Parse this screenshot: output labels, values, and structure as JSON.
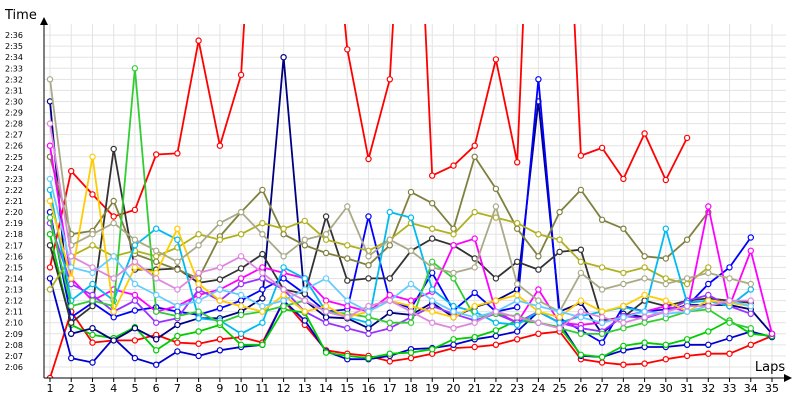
{
  "chart_data": {
    "type": "line",
    "title": "",
    "xlabel": "Laps",
    "ylabel": "Time",
    "x": [
      1,
      2,
      3,
      4,
      5,
      6,
      7,
      8,
      9,
      10,
      11,
      12,
      13,
      14,
      15,
      16,
      17,
      18,
      19,
      20,
      21,
      22,
      23,
      24,
      25,
      26,
      27,
      28,
      29,
      30,
      31,
      32,
      33,
      34,
      35
    ],
    "xlim": [
      1,
      35
    ],
    "ylim": [
      "2:05",
      "2:37"
    ],
    "y_ticks": [
      "2:06",
      "2:07",
      "2:08",
      "2:09",
      "2:10",
      "2:11",
      "2:12",
      "2:13",
      "2:14",
      "2:15",
      "2:16",
      "2:17",
      "2:18",
      "2:19",
      "2:20",
      "2:21",
      "2:22",
      "2:23",
      "2:24",
      "2:25",
      "2:26",
      "2:27",
      "2:28",
      "2:29",
      "2:30",
      "2:31",
      "2:32",
      "2:33",
      "2:34",
      "2:35",
      "2:36"
    ],
    "grid": true,
    "legend": "none",
    "series": [
      {
        "color": "#ff0000",
        "values": [
          135,
          143.7,
          141.6,
          139.6,
          140.2,
          145.2,
          145.3,
          155.5,
          146,
          152.4,
          185,
          160,
          180,
          175,
          154.7,
          144.8,
          152,
          185,
          143.3,
          144.2,
          146,
          153.8,
          144.5,
          190,
          185,
          145.1,
          145.8,
          143,
          147.1,
          142.9,
          146.7,
          null,
          null,
          null,
          null
        ]
      },
      {
        "color": "#ff0000",
        "values": [
          125,
          131,
          128.2,
          128.4,
          128.4,
          128.9,
          128.2,
          128.1,
          128.5,
          128.7,
          128.2,
          132,
          129.8,
          127.5,
          127.2,
          127.0,
          126.5,
          126.8,
          127.2,
          127.7,
          127.8,
          128.0,
          128.5,
          129.0,
          129.2,
          126.7,
          126.4,
          126.2,
          126.3,
          126.7,
          127.0,
          127.2,
          127.2,
          128,
          128.8
        ]
      },
      {
        "color": "#0000cc",
        "values": [
          134,
          126.8,
          126.4,
          128.6,
          126.8,
          126.2,
          127.4,
          127.0,
          127.5,
          127.8,
          128.0,
          132.0,
          130.2,
          127.4,
          126.7,
          126.7,
          127.0,
          127.6,
          127.7,
          128.0,
          128.5,
          128.8,
          129.2,
          131.0,
          130.0,
          127.0,
          126.9,
          127.5,
          127.8,
          127.8,
          128.0,
          128.0,
          128.6,
          129.2,
          128.7
        ]
      },
      {
        "color": "#00cc00",
        "values": [
          138,
          129.8,
          128.9,
          128.6,
          129.6,
          127.5,
          128.8,
          129.2,
          129.8,
          128.0,
          128.0,
          131.2,
          130.9,
          127.3,
          127.0,
          126.8,
          127.2,
          127.3,
          127.6,
          128.5,
          128.7,
          129.3,
          130.2,
          130.0,
          129.6,
          127.1,
          126.9,
          127.9,
          128.2,
          128.0,
          128.5,
          129.2,
          130.2,
          129.0,
          128.8
        ]
      },
      {
        "color": "#000080",
        "values": [
          150,
          129.0,
          129.5,
          128.4,
          129.5,
          128.5,
          129.8,
          130.4,
          130.4,
          131.0,
          132.2,
          154.0,
          132.0,
          130.5,
          130.4,
          129.5,
          130.9,
          130.7,
          131.8,
          130.5,
          131.4,
          132.0,
          133.0,
          150.0,
          131.0,
          131.8,
          129.0,
          130.8,
          130.5,
          131.0,
          131.6,
          131.6,
          131.6,
          131.2,
          129.0
        ]
      },
      {
        "color": "#0000ff",
        "values": [
          140,
          130.5,
          131.8,
          130.5,
          131.1,
          131.4,
          131.0,
          130.7,
          131.3,
          132.0,
          133.0,
          134.0,
          132.6,
          131.0,
          131.2,
          139.6,
          132.0,
          131.3,
          134.5,
          131.1,
          132.7,
          131.0,
          131.4,
          152.0,
          130.4,
          129.3,
          128.2,
          131.5,
          131.0,
          131.2,
          131.5,
          133.5,
          135.0,
          137.7,
          null
        ]
      },
      {
        "color": "#333333",
        "values": [
          137,
          130.0,
          131.5,
          145.7,
          134.8,
          134.8,
          134.9,
          133.6,
          133.9,
          134.9,
          136.2,
          133.0,
          132.6,
          139.6,
          133.8,
          134.0,
          134.0,
          136.5,
          137.6,
          137.0,
          135.8,
          134.0,
          135.5,
          134.8,
          136.4,
          136.6,
          130.2,
          130.5,
          132.0,
          131.5,
          132.0,
          132.2,
          132.0,
          131.8,
          null
        ]
      },
      {
        "color": "#808040",
        "values": [
          145,
          138.0,
          138.3,
          141.0,
          136.2,
          135.5,
          134.8,
          134.0,
          137.8,
          140.0,
          142.0,
          138.0,
          137.0,
          136.3,
          135.8,
          135.2,
          137.0,
          141.8,
          140.8,
          138.5,
          145.0,
          142.1,
          138.5,
          136.0,
          140.0,
          142.0,
          139.3,
          138.5,
          136.0,
          135.8,
          137.5,
          140.0,
          null,
          null,
          null
        ]
      },
      {
        "color": "#b0b020",
        "values": [
          133,
          136.0,
          137.0,
          136.0,
          136.5,
          136.0,
          136.8,
          138.0,
          137.5,
          138.0,
          139.0,
          138.5,
          139.2,
          137.5,
          137.0,
          136.5,
          137.5,
          139.0,
          138.5,
          138.0,
          140.0,
          139.5,
          139.0,
          138.0,
          137.5,
          135.5,
          135.0,
          134.5,
          135.0,
          134.0,
          133.5,
          135.0,
          null,
          null,
          null
        ]
      },
      {
        "color": "#ff00ff",
        "values": [
          146,
          134.0,
          132.0,
          133.0,
          132.5,
          131.0,
          131.5,
          132.5,
          133.0,
          134.0,
          135.0,
          134.5,
          134.0,
          132.0,
          131.5,
          131.0,
          132.5,
          132.0,
          132.8,
          137.0,
          137.6,
          131.0,
          130.0,
          133.0,
          130.0,
          129.8,
          130.0,
          130.6,
          131.0,
          131.5,
          131.0,
          140.5,
          131.5,
          136.5,
          129.0
        ]
      },
      {
        "color": "#9933ff",
        "values": [
          139,
          133.5,
          132.5,
          131.0,
          132.0,
          130.0,
          130.4,
          133.0,
          132.0,
          133.5,
          134.0,
          133.0,
          131.0,
          130.0,
          129.5,
          129.0,
          129.5,
          130.5,
          131.5,
          130.8,
          130.2,
          130.8,
          130.0,
          131.0,
          130.0,
          129.5,
          129.2,
          130.6,
          130.4,
          131.0,
          132.0,
          132.5,
          131.5,
          130.8,
          null
        ]
      },
      {
        "color": "#00bbee",
        "values": [
          142,
          132.0,
          133.5,
          132.0,
          137.0,
          138.5,
          137.5,
          130.4,
          130.2,
          129.0,
          130.0,
          135.0,
          134.0,
          131.0,
          130.5,
          130.0,
          140.0,
          139.5,
          133.0,
          131.5,
          131.0,
          130.0,
          129.8,
          131.0,
          130.0,
          130.6,
          131.0,
          131.4,
          131.0,
          138.5,
          131.8,
          132.0,
          131.5,
          133.0,
          null
        ]
      },
      {
        "color": "#33cc33",
        "values": [
          139.5,
          131.5,
          132.0,
          131.5,
          153.0,
          131.0,
          130.6,
          131.0,
          130.0,
          130.7,
          131.0,
          131.5,
          132.0,
          131.0,
          130.8,
          130.5,
          130.0,
          130.0,
          135.5,
          134.0,
          130.5,
          130.8,
          130.6,
          130.0,
          129.5,
          129.0,
          129.0,
          129.5,
          130.0,
          130.4,
          131.0,
          131.2,
          130.0,
          129.5,
          null
        ]
      },
      {
        "color": "#ffcc00",
        "values": [
          141,
          134.0,
          145.0,
          131.0,
          135.0,
          134.5,
          138.5,
          133.5,
          132.0,
          131.5,
          131.0,
          132.5,
          131.0,
          131.5,
          130.5,
          131.0,
          132.0,
          131.5,
          131.0,
          130.5,
          131.5,
          132.0,
          132.5,
          131.0,
          130.5,
          132.0,
          131.0,
          131.5,
          132.5,
          132.0,
          131.0,
          132.0,
          131.8,
          131.5,
          null
        ]
      },
      {
        "color": "#aaaa88",
        "values": [
          152,
          137.0,
          138.0,
          139.0,
          137.5,
          136.5,
          135.5,
          137.0,
          139.0,
          140.0,
          138.0,
          136.0,
          137.5,
          138.0,
          140.5,
          136.0,
          137.5,
          136.5,
          135.0,
          134.5,
          135.0,
          140.5,
          133.5,
          132.0,
          131.0,
          134.5,
          133.0,
          133.5,
          134.0,
          133.5,
          134.0,
          134.5,
          134.0,
          133.5,
          null
        ]
      },
      {
        "color": "#66ccff",
        "values": [
          143,
          135.0,
          134.5,
          136.0,
          133.5,
          132.5,
          131.5,
          132.0,
          133.0,
          132.5,
          131.5,
          132.0,
          133.0,
          134.0,
          132.0,
          131.0,
          132.0,
          133.5,
          132.0,
          131.0,
          130.5,
          131.0,
          132.0,
          131.5,
          131.0,
          130.5,
          130.0,
          130.5,
          131.0,
          130.8,
          131.0,
          131.5,
          132.0,
          131.5,
          null
        ]
      },
      {
        "color": "#dd88dd",
        "values": [
          148,
          136.0,
          135.0,
          134.0,
          135.5,
          134.0,
          133.0,
          134.5,
          135.0,
          136.0,
          134.5,
          133.0,
          132.0,
          131.0,
          130.5,
          131.5,
          132.0,
          131.0,
          130.0,
          129.5,
          130.0,
          131.0,
          130.5,
          130.0,
          129.5,
          131.0,
          130.5,
          130.0,
          130.5,
          131.0,
          131.5,
          131.5,
          132.0,
          132.0,
          null
        ]
      }
    ]
  }
}
